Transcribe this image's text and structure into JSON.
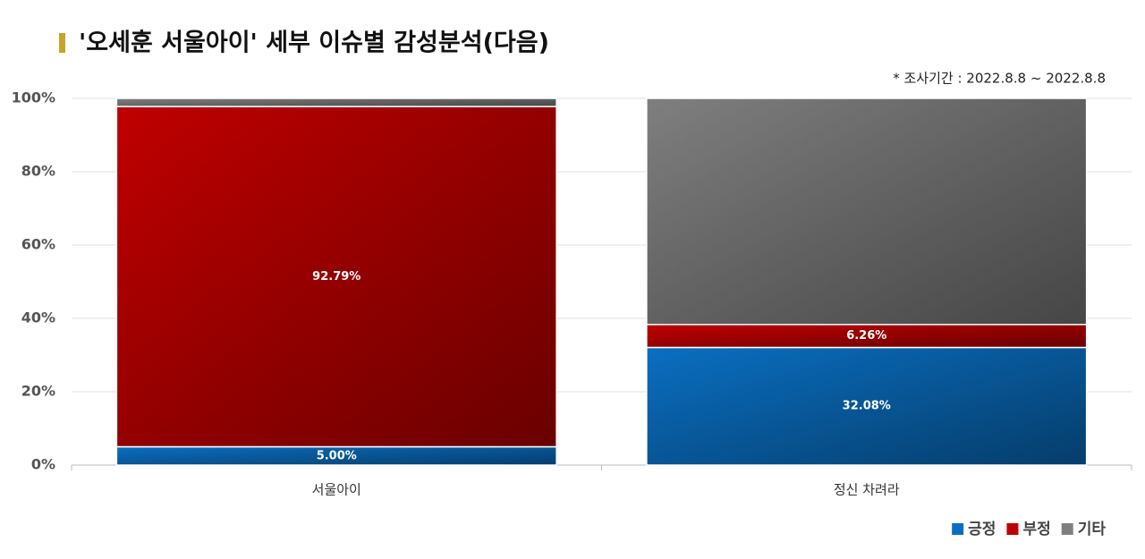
{
  "chart_data": {
    "type": "stacked_bar_100",
    "title": "'오세훈 서울아이' 세부 이슈별 감성분석(다음)",
    "subtitle": "* 조사기간 : 2022.8.8 ~ 2022.8.8",
    "categories": [
      "서울아이",
      "정신 차려라"
    ],
    "series": [
      {
        "name": "긍정",
        "color": "#0a6fc2",
        "values": [
          5.0,
          32.08
        ],
        "value_labels": [
          "5.00%",
          "32.08%"
        ]
      },
      {
        "name": "부정",
        "color": "#c00000",
        "values": [
          92.79,
          6.26
        ],
        "value_labels": [
          "92.79%",
          "6.26%"
        ]
      },
      {
        "name": "기타",
        "color": "#7f7f7f",
        "values": [
          2.21,
          61.66
        ]
      }
    ],
    "ylim": [
      0,
      100
    ],
    "yticks": [
      {
        "value": 0,
        "label": "0%"
      },
      {
        "value": 20,
        "label": "20%"
      },
      {
        "value": 40,
        "label": "40%"
      },
      {
        "value": 60,
        "label": "60%"
      },
      {
        "value": 80,
        "label": "80%"
      },
      {
        "value": 100,
        "label": "100%"
      }
    ],
    "grid": true,
    "legend": "bottom-right"
  }
}
